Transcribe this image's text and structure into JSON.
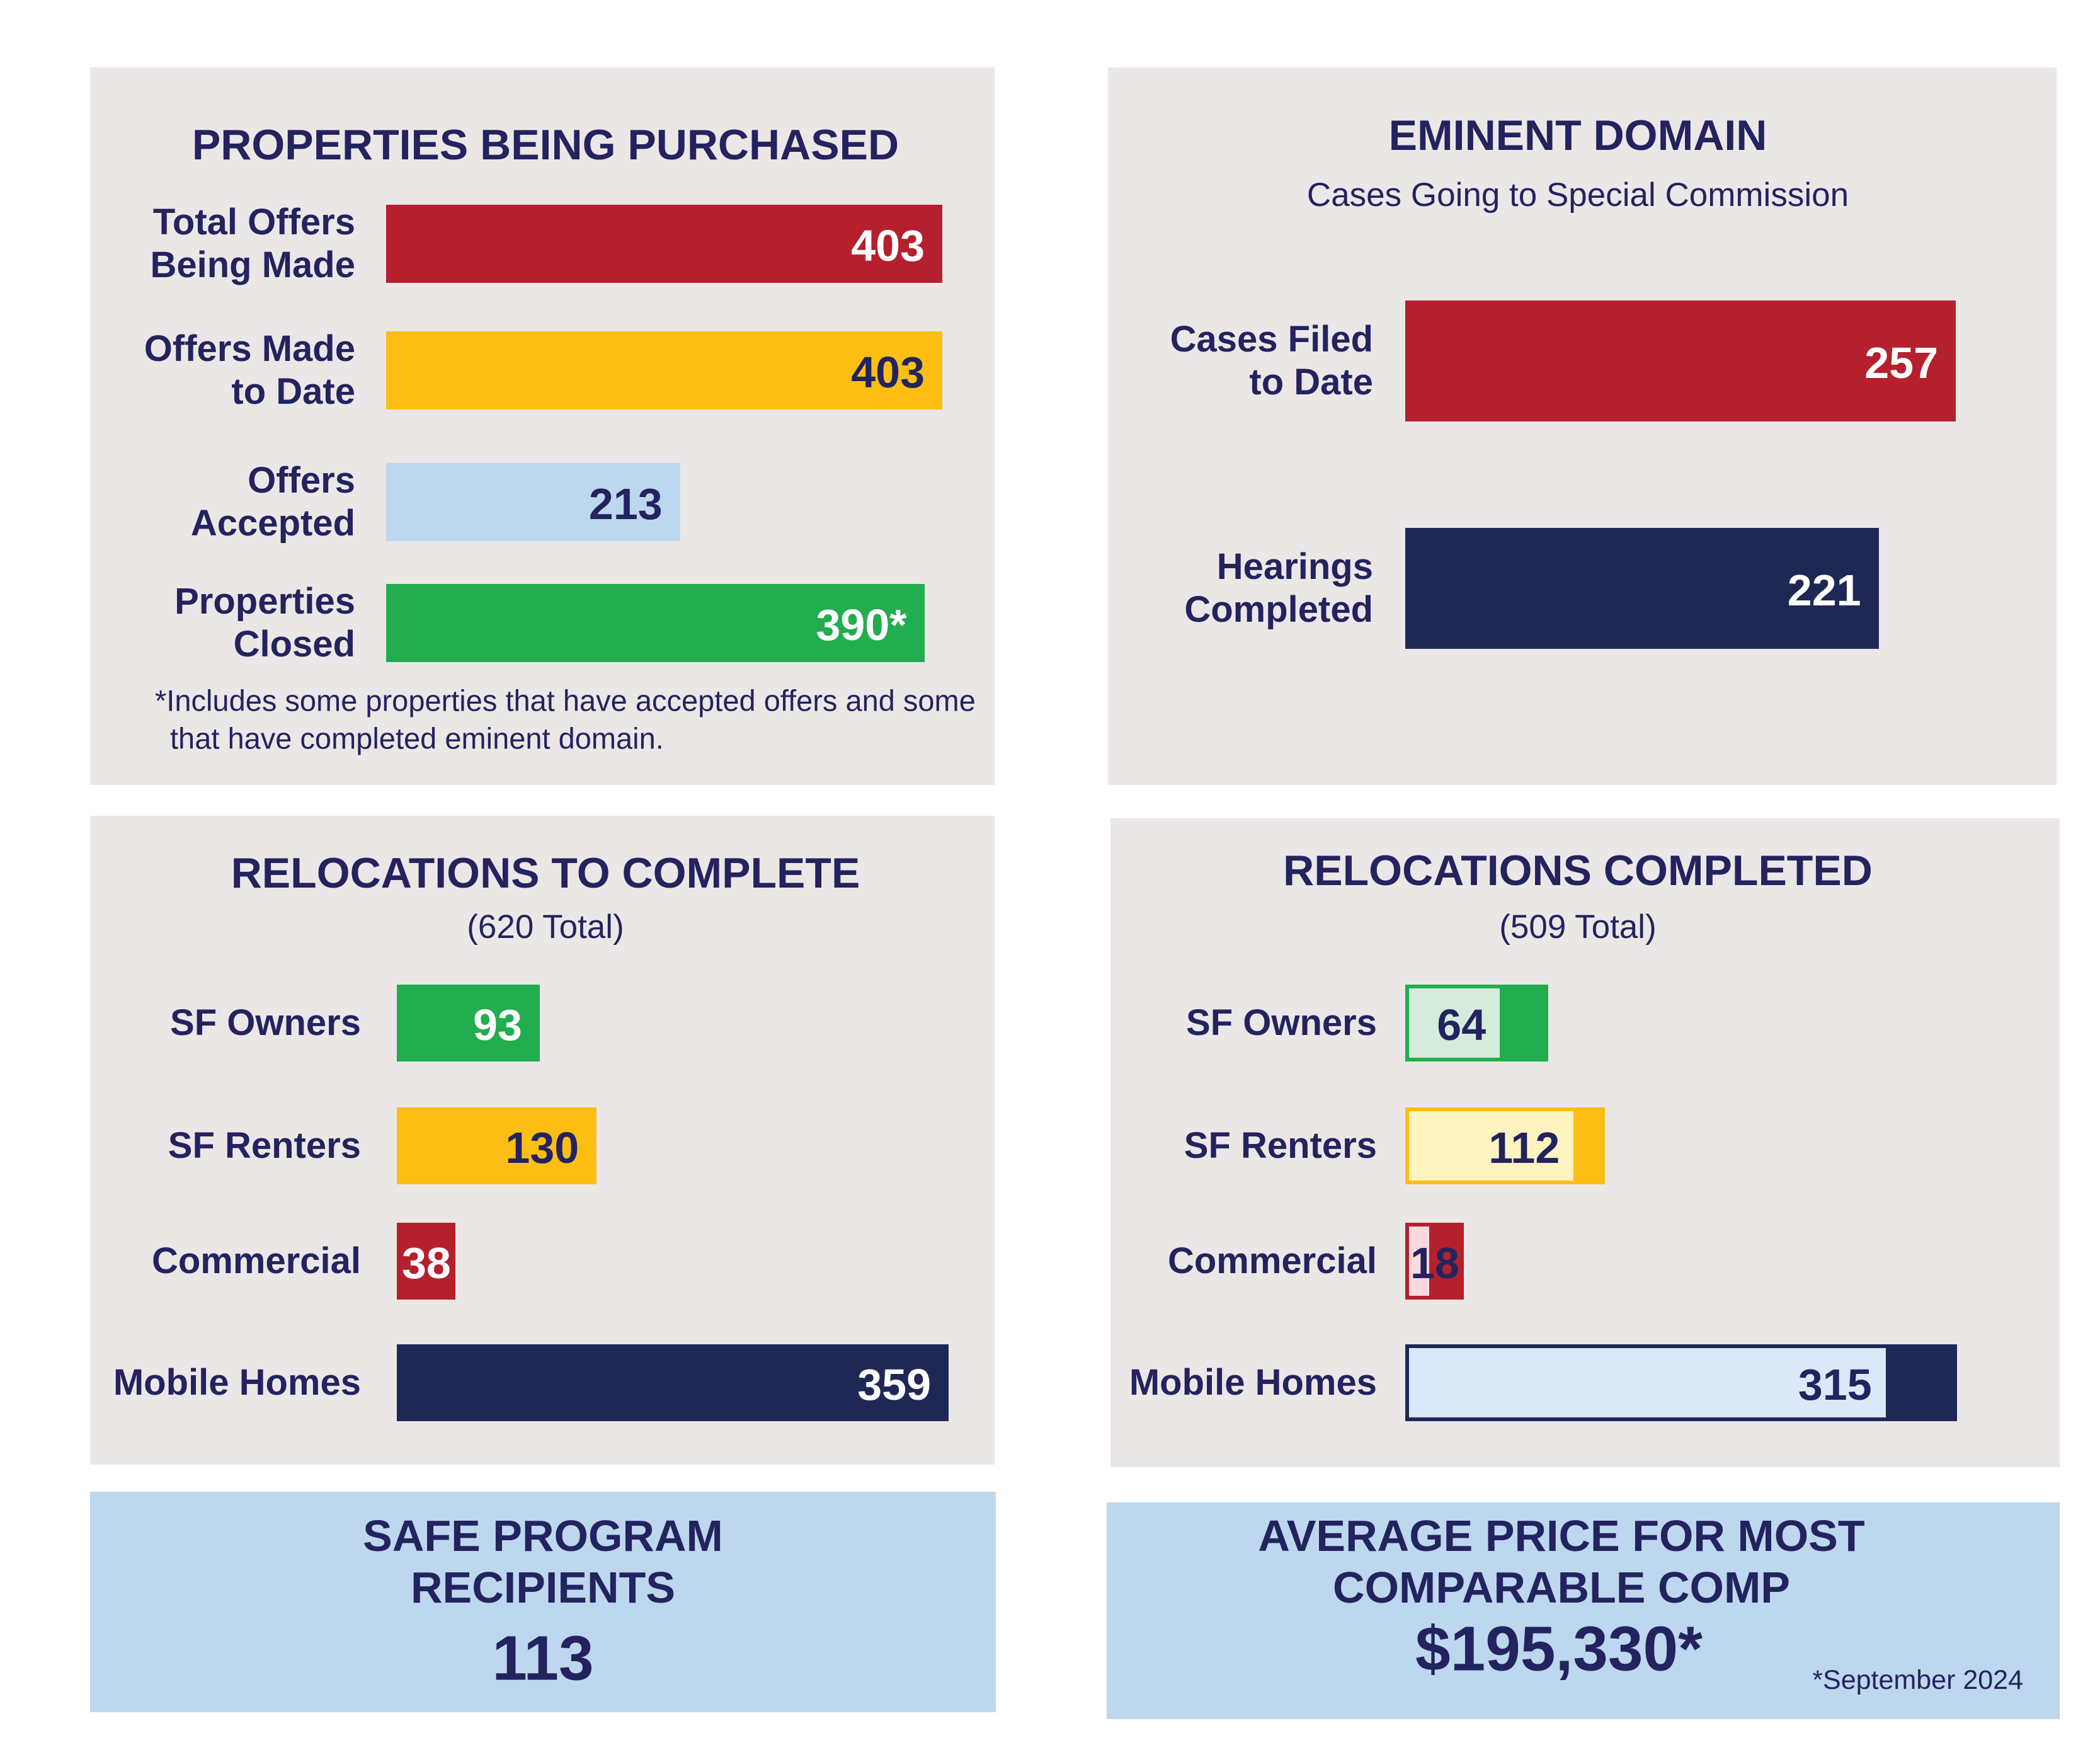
{
  "chart_data": [
    {
      "type": "bar",
      "orientation": "horizontal",
      "title": "PROPERTIES BEING PURCHASED",
      "categories": [
        "Total Offers\nBeing Made",
        "Offers Made\nto Date",
        "Offers\nAccepted",
        "Properties\nClosed"
      ],
      "values": [
        403,
        403,
        213,
        390
      ],
      "value_labels": [
        "403",
        "403",
        "213",
        "390*"
      ],
      "colors": [
        "#b5202e",
        "#fdbe14",
        "#bdd7ee",
        "#22ad4e"
      ],
      "label_colors": [
        "#ffffff",
        "#23235f",
        "#23235f",
        "#ffffff"
      ],
      "footnote": [
        "*Includes some properties that have accepted offers and some",
        "that have completed eminent domain."
      ]
    },
    {
      "type": "bar",
      "orientation": "horizontal",
      "title": "EMINENT DOMAIN",
      "subtitle": "Cases Going to Special Commission",
      "categories": [
        "Cases Filed\nto Date",
        "Hearings\nCompleted"
      ],
      "values": [
        257,
        221
      ],
      "colors": [
        "#b5202e",
        "#1f2855"
      ],
      "label_colors": [
        "#ffffff",
        "#ffffff"
      ]
    },
    {
      "type": "bar",
      "orientation": "horizontal",
      "title": "RELOCATIONS TO COMPLETE",
      "subtitle": "(620 Total)",
      "categories": [
        "SF Owners",
        "SF Renters",
        "Commercial",
        "Mobile Homes"
      ],
      "values": [
        93,
        130,
        38,
        359
      ],
      "colors": [
        "#22ad4e",
        "#fdbe14",
        "#b5202e",
        "#1f2855"
      ],
      "label_colors": [
        "#ffffff",
        "#23235f",
        "#ffffff",
        "#ffffff"
      ]
    },
    {
      "type": "bar",
      "orientation": "horizontal",
      "title": "RELOCATIONS  COMPLETED",
      "subtitle": "(509 Total)",
      "categories": [
        "SF Owners",
        "SF Renters",
        "Commercial",
        "Mobile Homes"
      ],
      "values": [
        64,
        112,
        18,
        315
      ],
      "colors": [
        "#22ad4e",
        "#fdbe14",
        "#b5202e",
        "#1f2855"
      ],
      "fill_colors": [
        "#d5ecdc",
        "#fff3c0",
        "#fadadd",
        "#dce7f7"
      ],
      "label_colors": [
        "#23235f",
        "#23235f",
        "#23235f",
        "#23235f"
      ]
    }
  ],
  "callouts": [
    {
      "title": "SAFE PROGRAM\nRECIPIENTS",
      "value": 113
    },
    {
      "title": "AVERAGE PRICE FOR MOST\nCOMPARABLE COMP",
      "value": {
        "value": 195330,
        "label": "$195,330*"
      },
      "note": "*September 2024"
    }
  ]
}
